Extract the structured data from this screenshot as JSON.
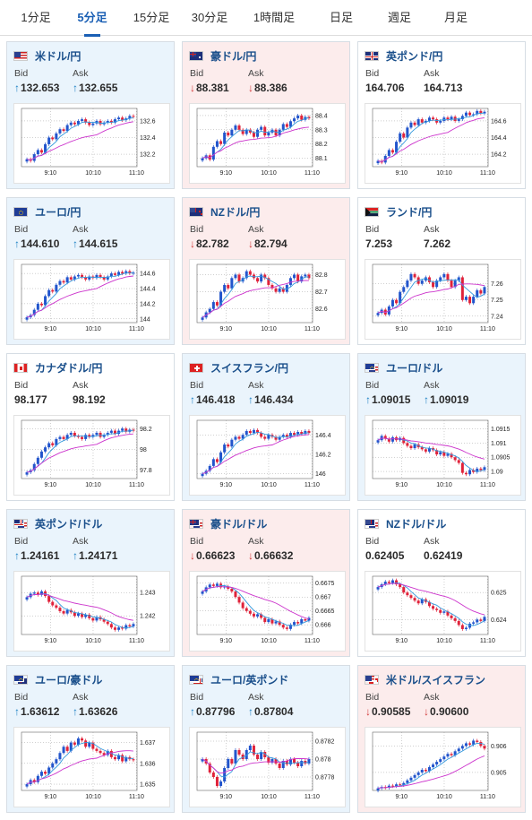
{
  "tabs": [
    "1分足",
    "5分足",
    "15分足",
    "30分足",
    "1時間足",
    "日足",
    "週足",
    "月足"
  ],
  "active_tab": "5分足",
  "labels": {
    "bid": "Bid",
    "ask": "Ask"
  },
  "colors": {
    "up_card": "#eaf4fc",
    "down_card": "#fcecec",
    "up_arrow": "#1b80c4",
    "down_arrow": "#d23a3a",
    "up_candle": "#2255cc",
    "down_candle": "#e0223a",
    "ma_short": "#3399dd",
    "ma_long": "#cc33cc"
  },
  "cards": [
    {
      "pair": "米ドル/円",
      "flag": "us",
      "dir": "up",
      "bid": "132.653",
      "ask": "132.655",
      "chart_data": {
        "type": "candlestick",
        "x_ticks": [
          "9:10",
          "10:10",
          "11:10"
        ],
        "y_ticks": [
          "132.6",
          "132.4",
          "132.2"
        ],
        "y_range": [
          132.05,
          132.75
        ],
        "closes": [
          132.14,
          132.12,
          132.2,
          132.25,
          132.22,
          132.32,
          132.4,
          132.38,
          132.45,
          132.5,
          132.48,
          132.55,
          132.58,
          132.56,
          132.6,
          132.62,
          132.58,
          132.55,
          132.57,
          132.6,
          132.56,
          132.58,
          132.6,
          132.58,
          132.62,
          132.64,
          132.61,
          132.63,
          132.66,
          132.65
        ]
      }
    },
    {
      "pair": "豪ドル/円",
      "flag": "au",
      "dir": "down",
      "bid": "88.381",
      "ask": "88.386",
      "chart_data": {
        "type": "candlestick",
        "x_ticks": [
          "9:10",
          "10:10",
          "11:10"
        ],
        "y_ticks": [
          "88.4",
          "88.3",
          "88.2",
          "88.1"
        ],
        "y_range": [
          88.04,
          88.45
        ],
        "closes": [
          88.1,
          88.12,
          88.09,
          88.18,
          88.22,
          88.2,
          88.28,
          88.26,
          88.3,
          88.33,
          88.3,
          88.27,
          88.3,
          88.28,
          88.25,
          88.3,
          88.32,
          88.26,
          88.28,
          88.3,
          88.26,
          88.3,
          88.34,
          88.32,
          88.36,
          88.38,
          88.4,
          88.37,
          88.39,
          88.38
        ]
      }
    },
    {
      "pair": "英ポンド/円",
      "flag": "gb",
      "dir": "flat",
      "bid": "164.706",
      "ask": "164.713",
      "chart_data": {
        "type": "candlestick",
        "x_ticks": [
          "9:10",
          "10:10",
          "11:10"
        ],
        "y_ticks": [
          "164.6",
          "164.4",
          "164.2"
        ],
        "y_range": [
          164.05,
          164.75
        ],
        "closes": [
          164.12,
          164.1,
          164.18,
          164.25,
          164.22,
          164.35,
          164.45,
          164.4,
          164.52,
          164.58,
          164.55,
          164.62,
          164.58,
          164.6,
          164.64,
          164.62,
          164.58,
          164.6,
          164.64,
          164.62,
          164.65,
          164.6,
          164.62,
          164.66,
          164.7,
          164.67,
          164.68,
          164.72,
          164.69,
          164.71
        ]
      }
    },
    {
      "pair": "ユーロ/円",
      "flag": "eu",
      "dir": "up",
      "bid": "144.610",
      "ask": "144.615",
      "chart_data": {
        "type": "candlestick",
        "x_ticks": [
          "9:10",
          "10:10",
          "11:10"
        ],
        "y_ticks": [
          "144.6",
          "144.4",
          "144.2",
          "144"
        ],
        "y_range": [
          143.95,
          144.72
        ],
        "closes": [
          144.02,
          144.05,
          144.12,
          144.2,
          144.18,
          144.3,
          144.38,
          144.36,
          144.45,
          144.5,
          144.48,
          144.55,
          144.52,
          144.56,
          144.58,
          144.55,
          144.52,
          144.56,
          144.54,
          144.58,
          144.55,
          144.52,
          144.56,
          144.6,
          144.58,
          144.62,
          144.6,
          144.63,
          144.6,
          144.61
        ]
      }
    },
    {
      "pair": "NZドル/円",
      "flag": "nz",
      "dir": "down",
      "bid": "82.782",
      "ask": "82.794",
      "chart_data": {
        "type": "candlestick",
        "x_ticks": [
          "9:10",
          "10:10",
          "11:10"
        ],
        "y_ticks": [
          "82.8",
          "82.7",
          "82.6"
        ],
        "y_range": [
          82.52,
          82.86
        ],
        "closes": [
          82.55,
          82.58,
          82.6,
          82.64,
          82.62,
          82.7,
          82.74,
          82.72,
          82.78,
          82.8,
          82.76,
          82.78,
          82.82,
          82.8,
          82.78,
          82.76,
          82.8,
          82.78,
          82.74,
          82.72,
          82.7,
          82.72,
          82.7,
          82.74,
          82.78,
          82.8,
          82.76,
          82.79,
          82.8,
          82.78
        ]
      }
    },
    {
      "pair": "ランド/円",
      "flag": "za",
      "dir": "flat",
      "bid": "7.253",
      "ask": "7.262",
      "chart_data": {
        "type": "candlestick",
        "x_ticks": [
          "9:10",
          "10:10",
          "11:10"
        ],
        "y_ticks": [
          "7.26",
          "7.25",
          "7.24"
        ],
        "y_range": [
          7.236,
          7.272
        ],
        "closes": [
          7.242,
          7.244,
          7.241,
          7.246,
          7.25,
          7.248,
          7.255,
          7.258,
          7.262,
          7.266,
          7.264,
          7.26,
          7.262,
          7.264,
          7.261,
          7.258,
          7.262,
          7.264,
          7.266,
          7.262,
          7.258,
          7.262,
          7.264,
          7.25,
          7.252,
          7.248,
          7.252,
          7.256,
          7.254,
          7.258
        ]
      }
    },
    {
      "pair": "カナダドル/円",
      "flag": "ca",
      "dir": "flat",
      "bid": "98.177",
      "ask": "98.192",
      "chart_data": {
        "type": "candlestick",
        "x_ticks": [
          "9:10",
          "10:10",
          "11:10"
        ],
        "y_ticks": [
          "98.2",
          "98",
          "97.8"
        ],
        "y_range": [
          97.72,
          98.28
        ],
        "closes": [
          97.78,
          97.8,
          97.86,
          97.92,
          97.98,
          98.02,
          98.06,
          98.04,
          98.1,
          98.12,
          98.1,
          98.14,
          98.16,
          98.13,
          98.12,
          98.1,
          98.14,
          98.12,
          98.14,
          98.16,
          98.12,
          98.14,
          98.16,
          98.18,
          98.15,
          98.18,
          98.2,
          98.17,
          98.19,
          98.18
        ]
      }
    },
    {
      "pair": "スイスフラン/円",
      "flag": "ch",
      "dir": "up",
      "bid": "146.418",
      "ask": "146.434",
      "chart_data": {
        "type": "candlestick",
        "x_ticks": [
          "9:10",
          "10:10",
          "11:10"
        ],
        "y_ticks": [
          "146.4",
          "146.2",
          "146"
        ],
        "y_range": [
          145.95,
          146.55
        ],
        "closes": [
          146.0,
          146.03,
          146.08,
          146.15,
          146.12,
          146.22,
          146.3,
          146.28,
          146.35,
          146.38,
          146.36,
          146.4,
          146.44,
          146.42,
          146.45,
          146.42,
          146.38,
          146.36,
          146.4,
          146.38,
          146.35,
          146.38,
          146.4,
          146.38,
          146.42,
          146.4,
          146.43,
          146.41,
          146.44,
          146.42
        ]
      }
    },
    {
      "pair": "ユーロ/ドル",
      "flag": "eu-us",
      "dir": "up",
      "bid": "1.09015",
      "ask": "1.09019",
      "chart_data": {
        "type": "candlestick",
        "x_ticks": [
          "9:10",
          "10:10",
          "11:10"
        ],
        "y_ticks": [
          "1.0915",
          "1.091",
          "1.0905",
          "1.09"
        ],
        "y_range": [
          1.08975,
          1.0918
        ],
        "closes": [
          1.0911,
          1.09125,
          1.09115,
          1.09105,
          1.0912,
          1.0911,
          1.09118,
          1.091,
          1.0909,
          1.09082,
          1.09095,
          1.09085,
          1.09078,
          1.0907,
          1.09082,
          1.09075,
          1.0906,
          1.09068,
          1.09055,
          1.09062,
          1.0905,
          1.0904,
          1.0903,
          1.08995,
          1.0899,
          1.09005,
          1.08998,
          1.0901,
          1.09005,
          1.09015
        ]
      }
    },
    {
      "pair": "英ポンド/ドル",
      "flag": "gb-us",
      "dir": "up",
      "bid": "1.24161",
      "ask": "1.24171",
      "chart_data": {
        "type": "candlestick",
        "x_ticks": [
          "9:10",
          "10:10",
          "11:10"
        ],
        "y_ticks": [
          "1.243",
          "1.242"
        ],
        "y_range": [
          1.2412,
          1.2437
        ],
        "closes": [
          1.2428,
          1.24295,
          1.243,
          1.2429,
          1.24305,
          1.24285,
          1.2426,
          1.24245,
          1.24235,
          1.2422,
          1.2421,
          1.24225,
          1.24215,
          1.242,
          1.2421,
          1.24195,
          1.24205,
          1.2419,
          1.2418,
          1.24195,
          1.24185,
          1.24175,
          1.24165,
          1.2415,
          1.2414,
          1.2415,
          1.24145,
          1.2416,
          1.24155,
          1.24165
        ]
      }
    },
    {
      "pair": "豪ドル/ドル",
      "flag": "au-us",
      "dir": "down",
      "bid": "0.66623",
      "ask": "0.66632",
      "chart_data": {
        "type": "candlestick",
        "x_ticks": [
          "9:10",
          "10:10",
          "11:10"
        ],
        "y_ticks": [
          "0.6675",
          "0.667",
          "0.6665",
          "0.666"
        ],
        "y_range": [
          0.66565,
          0.66775
        ],
        "closes": [
          0.6672,
          0.66735,
          0.66745,
          0.6674,
          0.66748,
          0.66735,
          0.66738,
          0.6673,
          0.6672,
          0.667,
          0.6668,
          0.6666,
          0.6665,
          0.6664,
          0.6663,
          0.66638,
          0.66625,
          0.6661,
          0.6662,
          0.66605,
          0.66612,
          0.666,
          0.6659,
          0.66585,
          0.666,
          0.6661,
          0.66605,
          0.6662,
          0.66615,
          0.66625
        ]
      }
    },
    {
      "pair": "NZドル/ドル",
      "flag": "nz-us",
      "dir": "flat",
      "bid": "0.62405",
      "ask": "0.62419",
      "chart_data": {
        "type": "candlestick",
        "x_ticks": [
          "9:10",
          "10:10",
          "11:10"
        ],
        "y_ticks": [
          "0.625",
          "0.624"
        ],
        "y_range": [
          0.62345,
          0.6256
        ],
        "closes": [
          0.6252,
          0.6253,
          0.6254,
          0.62535,
          0.62545,
          0.6253,
          0.6252,
          0.625,
          0.6249,
          0.6248,
          0.6247,
          0.6246,
          0.62475,
          0.62465,
          0.6245,
          0.6244,
          0.62435,
          0.62425,
          0.6243,
          0.62415,
          0.62405,
          0.62395,
          0.6238,
          0.62365,
          0.6237,
          0.62385,
          0.6239,
          0.624,
          0.62395,
          0.6241
        ]
      }
    },
    {
      "pair": "ユーロ/豪ドル",
      "flag": "eu-au",
      "dir": "up",
      "bid": "1.63612",
      "ask": "1.63626",
      "chart_data": {
        "type": "candlestick",
        "x_ticks": [
          "9:10",
          "10:10",
          "11:10"
        ],
        "y_ticks": [
          "1.637",
          "1.636",
          "1.635"
        ],
        "y_range": [
          1.6347,
          1.6375
        ],
        "closes": [
          1.635,
          1.6352,
          1.6351,
          1.6354,
          1.6356,
          1.6355,
          1.6358,
          1.636,
          1.6362,
          1.6365,
          1.6368,
          1.6366,
          1.637,
          1.6369,
          1.6372,
          1.6371,
          1.6368,
          1.637,
          1.6367,
          1.6366,
          1.6365,
          1.6364,
          1.6366,
          1.6363,
          1.6362,
          1.6364,
          1.6361,
          1.6363,
          1.6362,
          1.63615
        ]
      }
    },
    {
      "pair": "ユーロ/英ポンド",
      "flag": "eu-gb",
      "dir": "up",
      "bid": "0.87796",
      "ask": "0.87804",
      "chart_data": {
        "type": "candlestick",
        "x_ticks": [
          "9:10",
          "10:10",
          "11:10"
        ],
        "y_ticks": [
          "0.8782",
          "0.878",
          "0.8778"
        ],
        "y_range": [
          0.87765,
          0.8783
        ],
        "closes": [
          0.878,
          0.87795,
          0.87785,
          0.8778,
          0.8777,
          0.87775,
          0.8779,
          0.878,
          0.87795,
          0.8781,
          0.87805,
          0.878,
          0.8781,
          0.87815,
          0.87805,
          0.878,
          0.87808,
          0.87802,
          0.87796,
          0.878,
          0.87795,
          0.8779,
          0.87798,
          0.87794,
          0.878,
          0.87796,
          0.87792,
          0.87798,
          0.87795,
          0.878
        ]
      }
    },
    {
      "pair": "米ドル/スイスフラン",
      "flag": "us-ch",
      "dir": "down",
      "bid": "0.90585",
      "ask": "0.90600",
      "chart_data": {
        "type": "candlestick",
        "x_ticks": [
          "9:10",
          "10:10",
          "11:10"
        ],
        "y_ticks": [
          "0.906",
          "0.905"
        ],
        "y_range": [
          0.90432,
          0.90652
        ],
        "closes": [
          0.9044,
          0.90445,
          0.90442,
          0.9045,
          0.90448,
          0.90455,
          0.90452,
          0.9046,
          0.9047,
          0.9048,
          0.9049,
          0.905,
          0.9051,
          0.90505,
          0.9052,
          0.9053,
          0.9054,
          0.9055,
          0.9056,
          0.9057,
          0.90565,
          0.9058,
          0.9059,
          0.906,
          0.9061,
          0.90605,
          0.9062,
          0.90615,
          0.906,
          0.9059
        ]
      }
    }
  ]
}
